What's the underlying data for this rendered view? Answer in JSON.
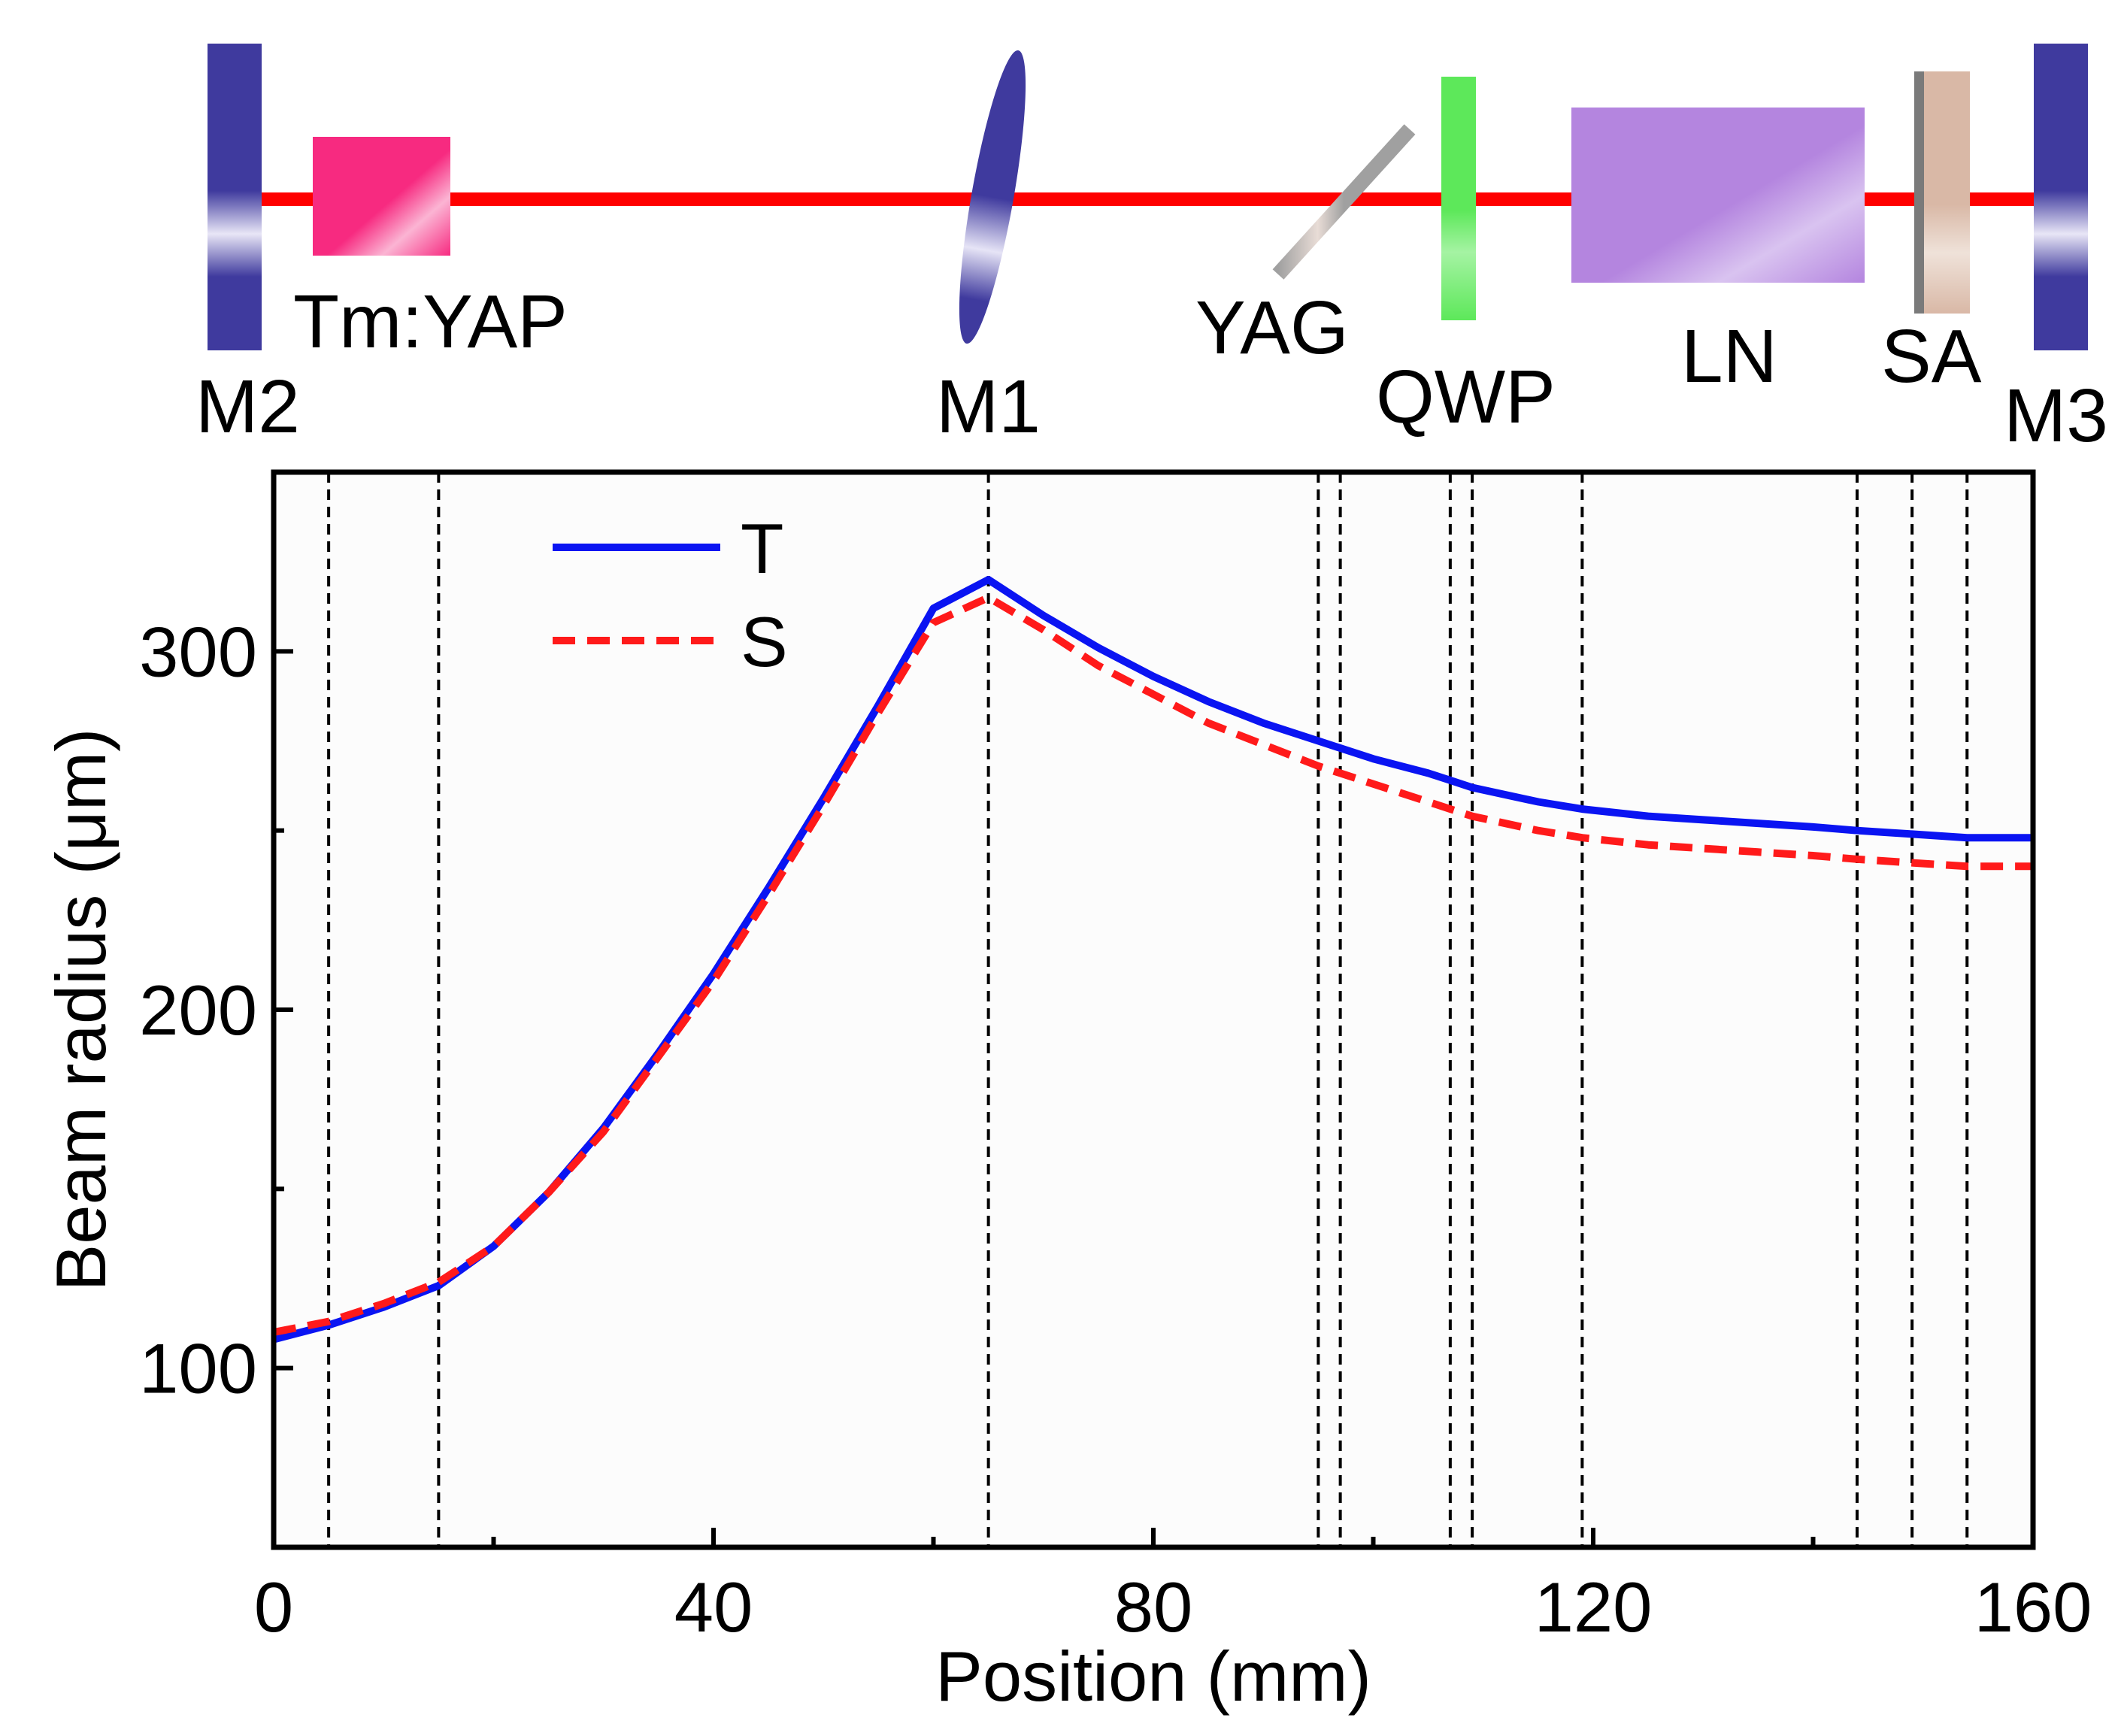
{
  "schematic": {
    "components": [
      {
        "id": "m2",
        "label": "M2",
        "color": "#3f3a9e"
      },
      {
        "id": "crystal",
        "label": "Tm:YAP",
        "color": "#f72a80"
      },
      {
        "id": "m1",
        "label": "M1",
        "color": "#3f3a9e"
      },
      {
        "id": "yag",
        "label": "YAG",
        "color": "#a8a8a8"
      },
      {
        "id": "qwp",
        "label": "QWP",
        "color": "#5de85a"
      },
      {
        "id": "ln",
        "label": "LN",
        "color": "#b485df"
      },
      {
        "id": "sa",
        "label": "SA",
        "color": "#d9b8a6"
      },
      {
        "id": "m3",
        "label": "M3",
        "color": "#3f3a9e"
      }
    ],
    "beam_color": "#ff0000"
  },
  "chart_data": {
    "type": "line",
    "title": "",
    "xlabel": "Position (mm)",
    "ylabel": "Beam radius (μm)",
    "xlim": [
      0,
      160
    ],
    "ylim": [
      50,
      350
    ],
    "xticks": [
      0,
      40,
      80,
      120,
      160
    ],
    "yticks": [
      100,
      200,
      300
    ],
    "xtick_labels": [
      "0",
      "40",
      "80",
      "120",
      "160"
    ],
    "ytick_labels": [
      "100",
      "200",
      "300"
    ],
    "grid": false,
    "legend_position": "top-left",
    "boundaries": [
      5,
      15,
      65,
      95,
      97,
      107,
      109,
      119,
      144,
      149,
      154
    ],
    "series": [
      {
        "name": "T",
        "color": "#0a14f2",
        "style": "solid",
        "x": [
          0,
          5,
          10,
          15,
          20,
          25,
          30,
          35,
          40,
          45,
          50,
          55,
          60,
          65,
          70,
          75,
          80,
          85,
          90,
          95,
          97,
          100,
          105,
          107,
          109,
          115,
          119,
          125,
          130,
          135,
          140,
          144,
          149,
          154,
          160
        ],
        "y": [
          108,
          112,
          117,
          123,
          134,
          149,
          167,
          188,
          210,
          234,
          259,
          285,
          312,
          320,
          310,
          301,
          293,
          286,
          280,
          275,
          273,
          270,
          266,
          264,
          262,
          258,
          256,
          254,
          253,
          252,
          251,
          250,
          249,
          248,
          248
        ]
      },
      {
        "name": "S",
        "color": "#ff1a1a",
        "style": "dashed",
        "x": [
          0,
          5,
          10,
          15,
          20,
          25,
          30,
          35,
          40,
          45,
          50,
          55,
          60,
          65,
          70,
          75,
          80,
          85,
          90,
          95,
          97,
          100,
          105,
          107,
          109,
          115,
          119,
          125,
          130,
          135,
          140,
          144,
          149,
          154,
          160
        ],
        "y": [
          110,
          113,
          118,
          124,
          134,
          149,
          166,
          187,
          208,
          232,
          257,
          283,
          308,
          315,
          306,
          296,
          288,
          280,
          274,
          268,
          266,
          263,
          258,
          256,
          254,
          250,
          248,
          246,
          245,
          244,
          243,
          242,
          241,
          240,
          240
        ]
      }
    ]
  }
}
